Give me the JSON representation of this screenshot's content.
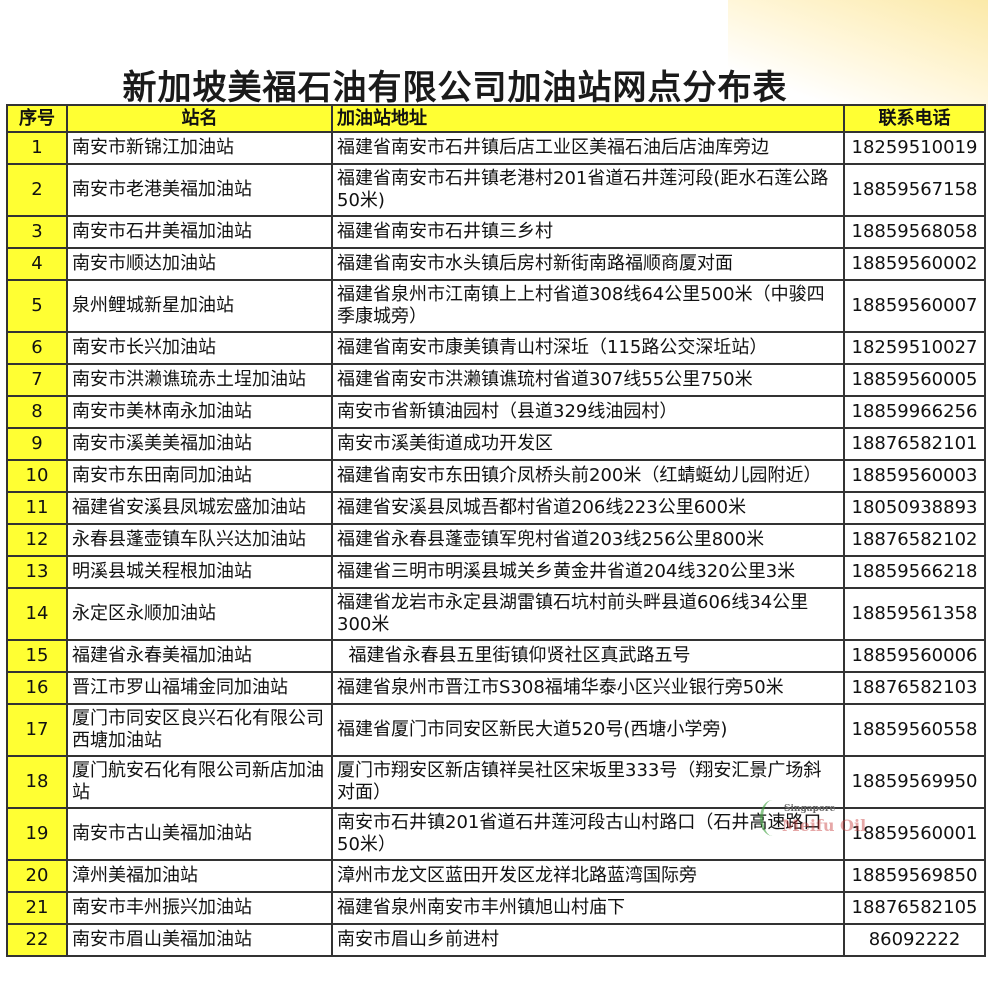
{
  "title": "新加坡美福石油有限公司加油站网点分布表",
  "columns": [
    "序号",
    "站名",
    "加油站地址",
    "联系电话"
  ],
  "rows": [
    {
      "no": "1",
      "name": "南安市新锦江加油站",
      "address": "福建省南安市石井镇后店工业区美福石油后店油库旁边",
      "phone": "18259510019",
      "lines": 1
    },
    {
      "no": "2",
      "name": "南安市老港美福加油站",
      "address": "福建省南安市石井镇老港村201省道石井莲河段(距水石莲公路50米)",
      "phone": "18859567158",
      "lines": 2
    },
    {
      "no": "3",
      "name": "南安市石井美福加油站",
      "address": "福建省南安市石井镇三乡村",
      "phone": "18859568058",
      "lines": 1
    },
    {
      "no": "4",
      "name": "南安市顺达加油站",
      "address": "福建省南安市水头镇后房村新街南路福顺商厦对面",
      "phone": "18859560002",
      "lines": 1
    },
    {
      "no": "5",
      "name": "泉州鲤城新星加油站",
      "address": "福建省泉州市江南镇上上村省道308线64公里500米（中骏四季康城旁）",
      "phone": "18859560007",
      "lines": 2
    },
    {
      "no": "6",
      "name": "南安市长兴加油站",
      "address": "福建省南安市康美镇青山村深坵（115路公交深坵站）",
      "phone": "18259510027",
      "lines": 1
    },
    {
      "no": "7",
      "name": "南安市洪濑谯琉赤土埕加油站",
      "address": "福建省南安市洪濑镇谯琉村省道307线55公里750米",
      "phone": "18859560005",
      "lines": 1
    },
    {
      "no": "8",
      "name": "南安市美林南永加油站",
      "address": "南安市省新镇油园村（县道329线油园村）",
      "phone": "18859966256",
      "lines": 1
    },
    {
      "no": "9",
      "name": "南安市溪美美福加油站",
      "address": "南安市溪美街道成功开发区",
      "phone": "18876582101",
      "lines": 1
    },
    {
      "no": "10",
      "name": "南安市东田南同加油站",
      "address": "福建省南安市东田镇介凤桥头前200米（红蜻蜓幼儿园附近）",
      "phone": "18859560003",
      "lines": 1
    },
    {
      "no": "11",
      "name": "福建省安溪县凤城宏盛加油站",
      "address": "福建省安溪县凤城吾都村省道206线223公里600米",
      "phone": "18050938893",
      "lines": 1
    },
    {
      "no": "12",
      "name": "永春县蓬壶镇车队兴达加油站",
      "address": "福建省永春县蓬壶镇军兜村省道203线256公里800米",
      "phone": "18876582102",
      "lines": 1
    },
    {
      "no": "13",
      "name": "明溪县城关程根加油站",
      "address": "福建省三明市明溪县城关乡黄金井省道204线320公里3米",
      "phone": "18859566218",
      "lines": 1
    },
    {
      "no": "14",
      "name": "永定区永顺加油站",
      "address": "福建省龙岩市永定县湖雷镇石坑村前头畔县道606线34公里300米",
      "phone": "18859561358",
      "lines": 2
    },
    {
      "no": "15",
      "name": "福建省永春美福加油站",
      "address": "  福建省永春县五里街镇仰贤社区真武路五号",
      "phone": "18859560006",
      "lines": 1
    },
    {
      "no": "16",
      "name": "晋江市罗山福埔金同加油站",
      "address": "福建省泉州市晋江市S308福埔华泰小区兴业银行旁50米",
      "phone": "18876582103",
      "lines": 1
    },
    {
      "no": "17",
      "name": "厦门市同安区良兴石化有限公司西塘加油站",
      "address": "福建省厦门市同安区新民大道520号(西塘小学旁)",
      "phone": "18859560558",
      "lines": 2
    },
    {
      "no": "18",
      "name": "厦门航安石化有限公司新店加油站",
      "address": "厦门市翔安区新店镇祥吴社区宋坂里333号（翔安汇景广场斜对面）",
      "phone": "18859569950",
      "lines": 2
    },
    {
      "no": "19",
      "name": "南安市古山美福加油站",
      "address": "南安市石井镇201省道石井莲河段古山村路口（石井高速路口50米）",
      "phone": "18859560001",
      "lines": 2
    },
    {
      "no": "20",
      "name": "漳州美福加油站",
      "address": "漳州市龙文区蓝田开发区龙祥北路蓝湾国际旁",
      "phone": "18859569850",
      "lines": 1
    },
    {
      "no": "21",
      "name": "南安市丰州振兴加油站",
      "address": "福建省泉州南安市丰州镇旭山村庙下",
      "phone": "18876582105",
      "lines": 1
    },
    {
      "no": "22",
      "name": "南安市眉山美福加油站",
      "address": "南安市眉山乡前进村",
      "phone": "86092222",
      "lines": 1
    }
  ],
  "watermark": {
    "line1": "Singapore",
    "line2": "Meifu Oil"
  },
  "colors": {
    "header_bg": "#ffff33",
    "index_bg": "#ffff33",
    "border": "#333333"
  }
}
